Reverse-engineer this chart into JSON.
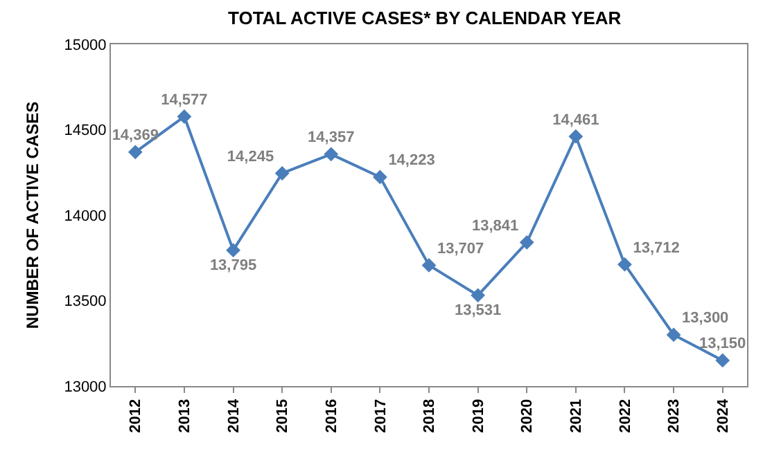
{
  "chart_data": {
    "type": "line",
    "title": "TOTAL ACTIVE CASES* BY CALENDAR YEAR",
    "ylabel": "NUMBER OF ACTIVE CASES",
    "categories": [
      "2012",
      "2013",
      "2014",
      "2015",
      "2016",
      "2017",
      "2018",
      "2019",
      "2020",
      "2021",
      "2022",
      "2023",
      "2024"
    ],
    "series": [
      {
        "color": "#4a7ebb",
        "values": [
          14369,
          14577,
          13795,
          14245,
          14357,
          14223,
          13707,
          13531,
          13841,
          14461,
          13712,
          13300,
          13150
        ],
        "value_labels": [
          "14,369",
          "14,577",
          "13,795",
          "14,245",
          "14,357",
          "14,223",
          "13,707",
          "13,531",
          "13,841",
          "14,461",
          "13,712",
          "13,300",
          "13,150"
        ]
      }
    ],
    "ylim": [
      13000,
      15000
    ],
    "yticks": [
      13000,
      13500,
      14000,
      14500,
      15000
    ],
    "marker": "diamond",
    "line_style": "solid",
    "grid": false,
    "legend": false
  }
}
